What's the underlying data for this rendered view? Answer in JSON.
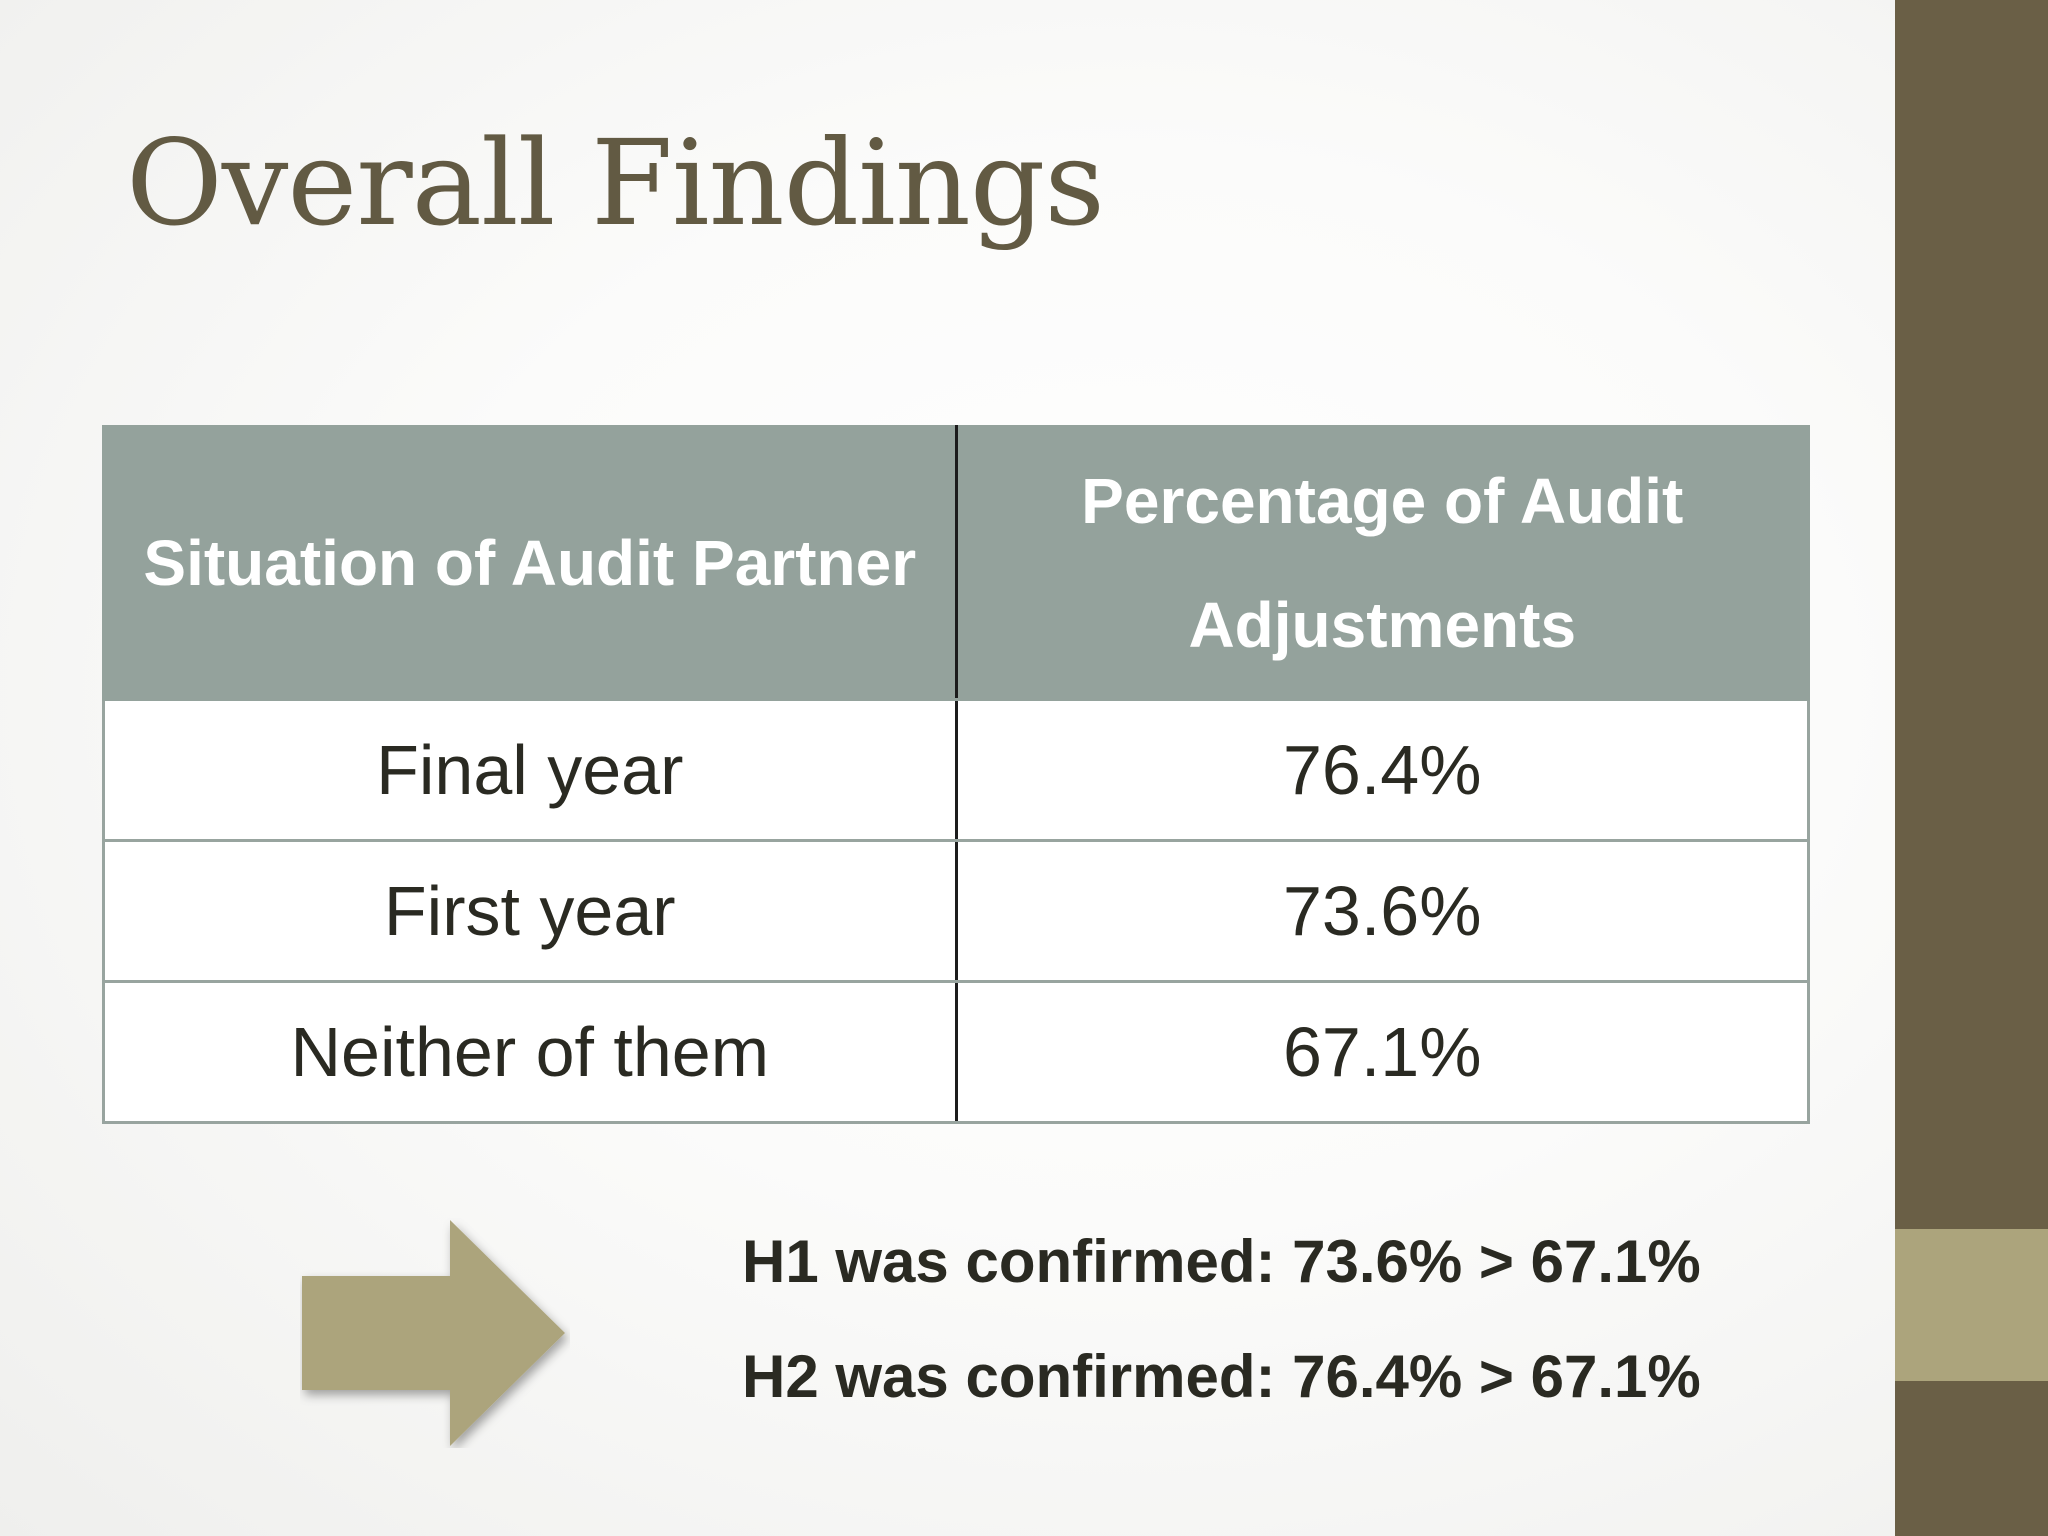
{
  "slide": {
    "title": "Overall Findings"
  },
  "table": {
    "headers": {
      "situation": "Situation of Audit Partner",
      "percentage": "Percentage of Audit Adjustments"
    },
    "rows": [
      {
        "situation": "Final year",
        "percentage": "76.4%"
      },
      {
        "situation": "First year",
        "percentage": "73.6%"
      },
      {
        "situation": "Neither of them",
        "percentage": "67.1%"
      }
    ]
  },
  "conclusions": {
    "h1": "H1 was confirmed: 73.6% > 67.1%",
    "h2": "H2 was confirmed: 76.4% > 67.1%"
  },
  "colors": {
    "title": "#625a43",
    "header_bg": "#94a29c",
    "sidebar": "#6a5f46",
    "sidebar_accent": "#aca47c",
    "arrow": "#aca47c"
  },
  "icons": {
    "arrow": "right-arrow-icon"
  }
}
